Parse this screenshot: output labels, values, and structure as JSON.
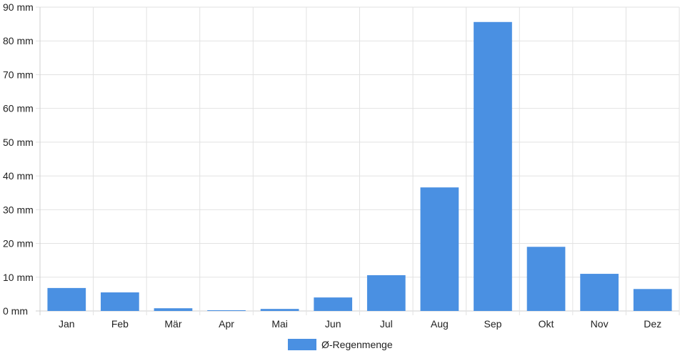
{
  "chart_data": {
    "type": "bar",
    "categories": [
      "Jan",
      "Feb",
      "Mär",
      "Apr",
      "Mai",
      "Jun",
      "Jul",
      "Aug",
      "Sep",
      "Okt",
      "Nov",
      "Dez"
    ],
    "series": [
      {
        "name": "Ø-Regenmenge",
        "values": [
          6.8,
          5.5,
          0.8,
          0.2,
          0.6,
          4.0,
          10.6,
          36.6,
          85.6,
          19.0,
          11.0,
          6.5
        ]
      }
    ],
    "y_ticks": [
      "0 mm",
      "10 mm",
      "20 mm",
      "30 mm",
      "40 mm",
      "50 mm",
      "60 mm",
      "70 mm",
      "80 mm",
      "90 mm"
    ],
    "ylim": [
      0,
      90
    ],
    "unit": "mm",
    "grid": true,
    "legend_position": "bottom-center",
    "colors": {
      "bar": "#4a90e2"
    }
  }
}
